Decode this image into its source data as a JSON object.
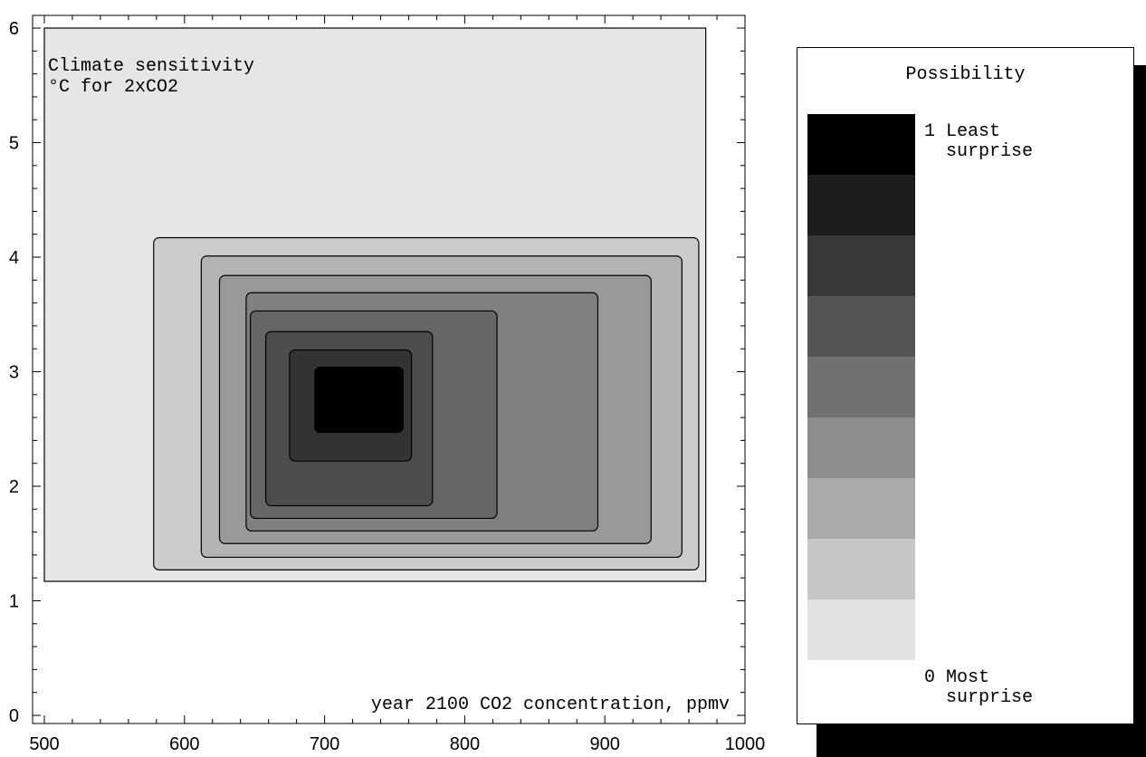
{
  "chart_data": {
    "type": "contour",
    "title": "",
    "annotation": [
      "Climate sensitivity",
      "°C for 2xCO2"
    ],
    "xlabel": "year 2100 CO2 concentration, ppmv",
    "ylabel": "",
    "xlim": [
      500,
      1000
    ],
    "ylim": [
      0,
      6
    ],
    "xticks": [
      500,
      600,
      700,
      800,
      900,
      1000
    ],
    "yticks": [
      0,
      1,
      2,
      3,
      4,
      5,
      6
    ],
    "legend_placement": "right",
    "levels": [
      {
        "possibility": 0.1,
        "x": [
          500,
          972
        ],
        "y": [
          1.17,
          6.0
        ]
      },
      {
        "possibility": 0.2,
        "x": [
          578,
          967
        ],
        "y": [
          1.27,
          4.17
        ]
      },
      {
        "possibility": 0.3,
        "x": [
          612,
          955
        ],
        "y": [
          1.38,
          4.01
        ]
      },
      {
        "possibility": 0.4,
        "x": [
          625,
          933
        ],
        "y": [
          1.5,
          3.84
        ]
      },
      {
        "possibility": 0.5,
        "x": [
          644,
          895
        ],
        "y": [
          1.61,
          3.69
        ]
      },
      {
        "possibility": 0.6,
        "x": [
          647,
          823
        ],
        "y": [
          1.72,
          3.53
        ]
      },
      {
        "possibility": 0.7,
        "x": [
          658,
          777
        ],
        "y": [
          1.83,
          3.35
        ]
      },
      {
        "possibility": 0.8,
        "x": [
          675,
          762
        ],
        "y": [
          2.22,
          3.19
        ]
      },
      {
        "possibility": 0.9,
        "x": [
          693,
          756
        ],
        "y": [
          2.47,
          3.04
        ]
      }
    ]
  },
  "legend": {
    "title": "Possibility",
    "top_value": "1",
    "top_label": [
      "Least",
      "surprise"
    ],
    "bottom_value": "0",
    "bottom_label": [
      "Most",
      "surprise"
    ],
    "colors": [
      "#000000",
      "#1c1c1c",
      "#383838",
      "#555555",
      "#717171",
      "#8d8d8d",
      "#aaaaaa",
      "#c6c6c6",
      "#e2e2e2"
    ]
  }
}
